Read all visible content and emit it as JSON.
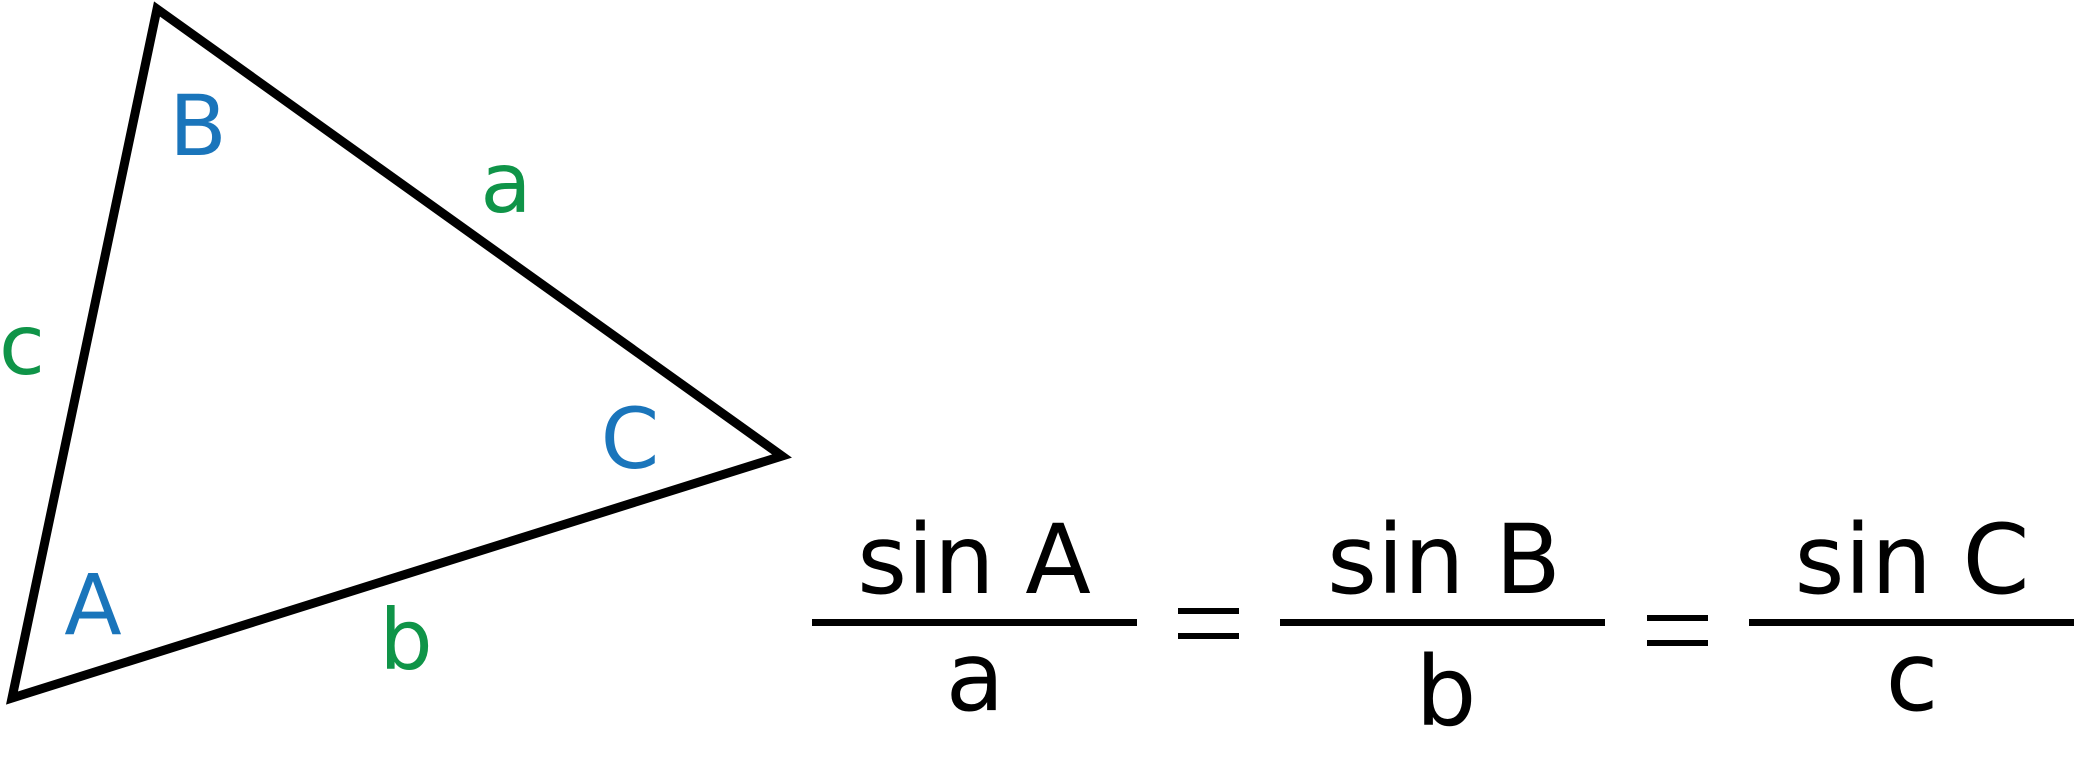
{
  "triangle": {
    "vertex_labels": {
      "A": "A",
      "B": "B",
      "C": "C"
    },
    "side_labels": {
      "a": "a",
      "b": "b",
      "c": "c"
    }
  },
  "formula": {
    "term1": {
      "numerator": "sin A",
      "denominator": "a"
    },
    "eq1": "=",
    "term2": {
      "numerator": "sin B",
      "denominator": "b"
    },
    "eq2": "=",
    "term3": {
      "numerator": "sin C",
      "denominator": "c"
    }
  },
  "colors": {
    "vertex_label": "#1a75bb",
    "side_label": "#0f9448",
    "stroke": "#000000",
    "formula_text": "#000000"
  }
}
